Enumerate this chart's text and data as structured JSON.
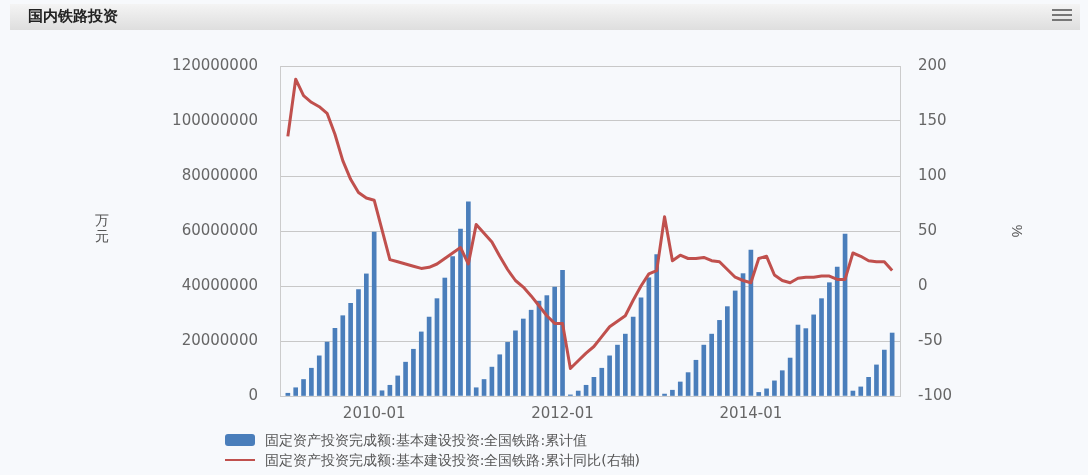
{
  "chart_data": {
    "type": "bar",
    "title": "国内铁路投资",
    "ylabel": "万元",
    "y2label": "%",
    "x": [
      "2009-02",
      "2009-03",
      "2009-04",
      "2009-05",
      "2009-06",
      "2009-07",
      "2009-08",
      "2009-09",
      "2009-10",
      "2009-11",
      "2009-12",
      "2010-01",
      "2010-02",
      "2010-03",
      "2010-04",
      "2010-05",
      "2010-06",
      "2010-07",
      "2010-08",
      "2010-09",
      "2010-10",
      "2010-11",
      "2010-12",
      "2011-01",
      "2011-02",
      "2011-03",
      "2011-04",
      "2011-05",
      "2011-06",
      "2011-07",
      "2011-08",
      "2011-09",
      "2011-10",
      "2011-11",
      "2011-12",
      "2012-01",
      "2012-02",
      "2012-03",
      "2012-04",
      "2012-05",
      "2012-06",
      "2012-07",
      "2012-08",
      "2012-09",
      "2012-10",
      "2012-11",
      "2012-12",
      "2013-01",
      "2013-02",
      "2013-03",
      "2013-04",
      "2013-05",
      "2013-06",
      "2013-07",
      "2013-08",
      "2013-09",
      "2013-10",
      "2013-11",
      "2013-12",
      "2014-01",
      "2014-02",
      "2014-03",
      "2014-04",
      "2014-05",
      "2014-06",
      "2014-07",
      "2014-08",
      "2014-09",
      "2014-10",
      "2014-11",
      "2014-12",
      "2015-01",
      "2015-02",
      "2015-03",
      "2015-04",
      "2015-05",
      "2015-06",
      "2015-07"
    ],
    "series": [
      {
        "name": "固定资产投资完成额:基本建设投资:全国铁路:累计值",
        "color": "#4a7ebb",
        "values": [
          1000000,
          3000000,
          6000000,
          10100000,
          14600000,
          19600000,
          24600000,
          29200000,
          33700000,
          38700000,
          44400000,
          59600000,
          1900000,
          3900000,
          7300000,
          12300000,
          17000000,
          23300000,
          28700000,
          35400000,
          42900000,
          50700000,
          60700000,
          70600000,
          3000000,
          6000000,
          10500000,
          15000000,
          19500000,
          23700000,
          28000000,
          31200000,
          34500000,
          36500000,
          39600000,
          45700000,
          400000,
          1800000,
          3900000,
          6800000,
          10100000,
          14600000,
          18500000,
          22500000,
          28700000,
          35700000,
          43000000,
          51400000,
          700000,
          2100000,
          5100000,
          8500000,
          13000000,
          18500000,
          22500000,
          27500000,
          32500000,
          38200000,
          44500000,
          53100000,
          1300000,
          2600000,
          5500000,
          9200000,
          13800000,
          25800000,
          24500000,
          29500000,
          35400000,
          41200000,
          46900000,
          58900000,
          1800000,
          3300000,
          6800000,
          11300000,
          16700000,
          22900000
        ]
      },
      {
        "name": "固定资产投资完成额:基本建设投资:全国铁路:累计同比(右轴)",
        "type": "line",
        "axis": "y2",
        "color": "#c0504d",
        "values": [
          136,
          188,
          173,
          167,
          163,
          157,
          138,
          114,
          97,
          85,
          80,
          78,
          51,
          24,
          22,
          20,
          18,
          16,
          17,
          20,
          25,
          30,
          35,
          20,
          56,
          48,
          40,
          27,
          15,
          5,
          -1,
          -9,
          -18,
          -27,
          -34,
          -34,
          -75,
          -68,
          -61,
          -55,
          -46,
          -37,
          -32,
          -27,
          -13,
          0,
          11,
          14,
          63,
          23,
          28,
          25,
          25,
          26,
          23,
          22,
          15,
          8,
          5,
          3,
          25,
          27,
          10,
          5,
          3,
          7,
          8,
          8,
          9,
          9,
          6,
          6,
          30,
          27,
          23,
          22,
          22,
          14
        ]
      }
    ],
    "xlim": [
      "2009-01",
      "2015-08"
    ],
    "xticks": [
      "2010-01",
      "2012-01",
      "2014-01"
    ],
    "ylim": [
      0,
      120000000
    ],
    "yticks": [
      0,
      20000000,
      40000000,
      60000000,
      80000000,
      100000000,
      120000000
    ],
    "y2lim": [
      -100,
      200
    ],
    "y2ticks": [
      -100,
      -50,
      0,
      50,
      100,
      150,
      200
    ],
    "grid": "y",
    "legend": "bottom"
  }
}
